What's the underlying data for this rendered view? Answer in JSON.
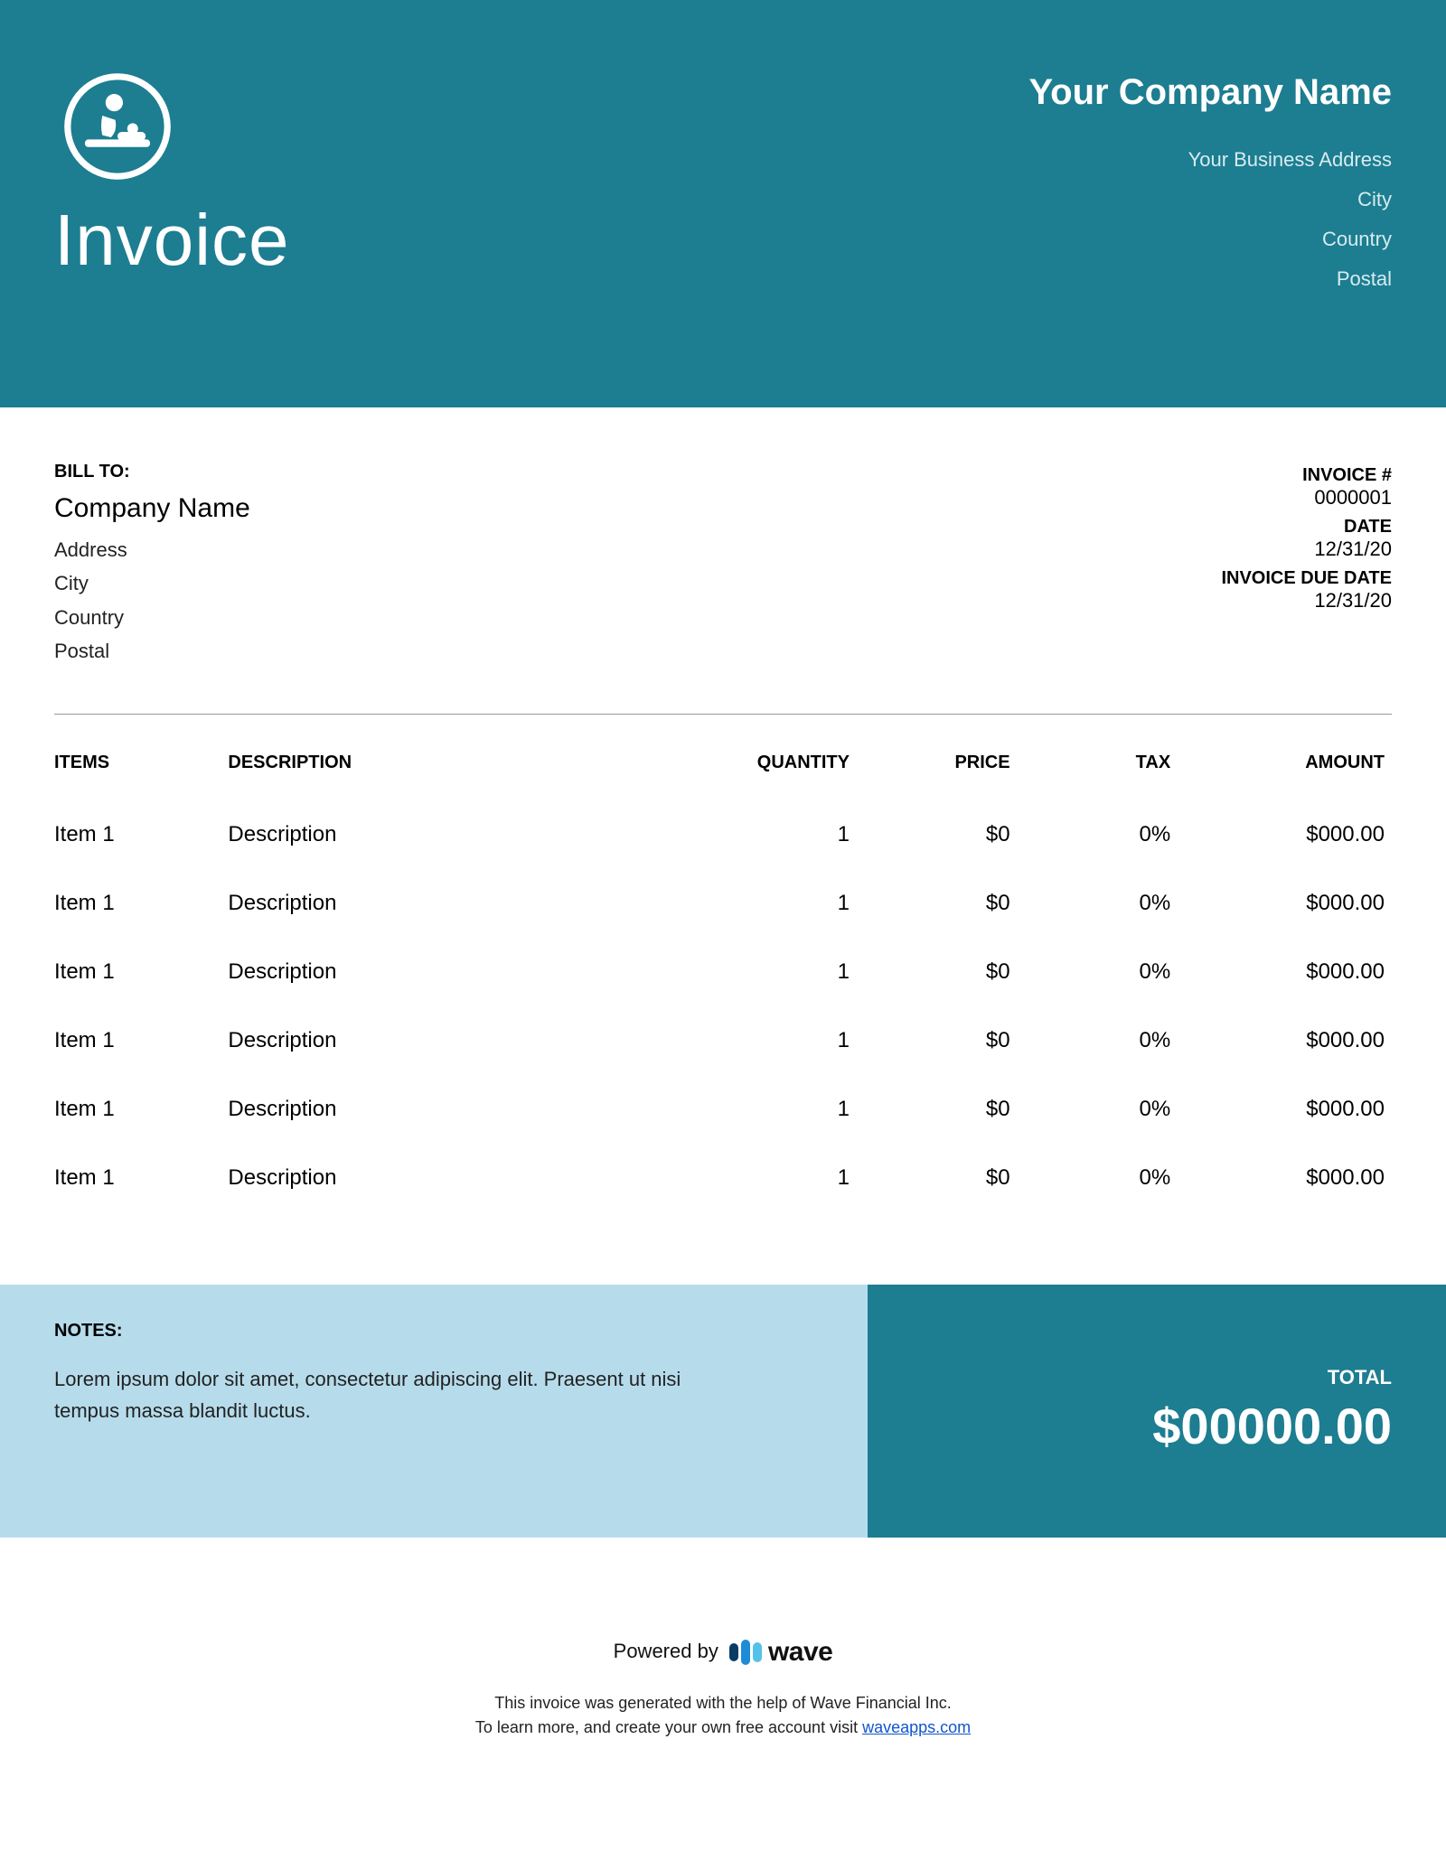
{
  "colors": {
    "primary": "#1d7d91",
    "secondary": "#b6dcec",
    "text": "#000000",
    "muted_white": "#d7ecef",
    "link": "#1155cc",
    "divider": "#999999",
    "wave_bar1": "#0a3b66",
    "wave_bar2": "#1e8bd6",
    "wave_bar3": "#56c1e8"
  },
  "header": {
    "title": "Invoice",
    "company_name": "Your Company Name",
    "address": "Your Business Address",
    "city": "City",
    "country": "Country",
    "postal": "Postal"
  },
  "bill_to": {
    "label": "BILL TO:",
    "name": "Company Name",
    "address": "Address",
    "city": "City",
    "country": "Country",
    "postal": "Postal"
  },
  "invoice_meta": {
    "number_label": "INVOICE #",
    "number": "0000001",
    "date_label": "DATE",
    "date": "12/31/20",
    "due_label": "INVOICE DUE DATE",
    "due": "12/31/20"
  },
  "table": {
    "headers": {
      "items": "ITEMS",
      "description": "DESCRIPTION",
      "quantity": "QUANTITY",
      "price": "PRICE",
      "tax": "TAX",
      "amount": "AMOUNT"
    },
    "rows": [
      {
        "item": "Item 1",
        "description": "Description",
        "quantity": "1",
        "price": "$0",
        "tax": "0%",
        "amount": "$000.00"
      },
      {
        "item": "Item 1",
        "description": "Description",
        "quantity": "1",
        "price": "$0",
        "tax": "0%",
        "amount": "$000.00"
      },
      {
        "item": "Item 1",
        "description": "Description",
        "quantity": "1",
        "price": "$0",
        "tax": "0%",
        "amount": "$000.00"
      },
      {
        "item": "Item 1",
        "description": "Description",
        "quantity": "1",
        "price": "$0",
        "tax": "0%",
        "amount": "$000.00"
      },
      {
        "item": "Item 1",
        "description": "Description",
        "quantity": "1",
        "price": "$0",
        "tax": "0%",
        "amount": "$000.00"
      },
      {
        "item": "Item 1",
        "description": "Description",
        "quantity": "1",
        "price": "$0",
        "tax": "0%",
        "amount": "$000.00"
      }
    ]
  },
  "notes": {
    "label": "NOTES:",
    "text": "Lorem ipsum dolor sit amet, consectetur adipiscing elit. Praesent ut nisi tempus massa blandit luctus."
  },
  "total": {
    "label": "TOTAL",
    "value": "$00000.00"
  },
  "footer": {
    "powered_by": "Powered by",
    "brand": "wave",
    "line1": "This invoice was generated with the help of Wave Financial Inc.",
    "line2_prefix": "To learn more, and create your own free account visit ",
    "link_text": "waveapps.com"
  }
}
